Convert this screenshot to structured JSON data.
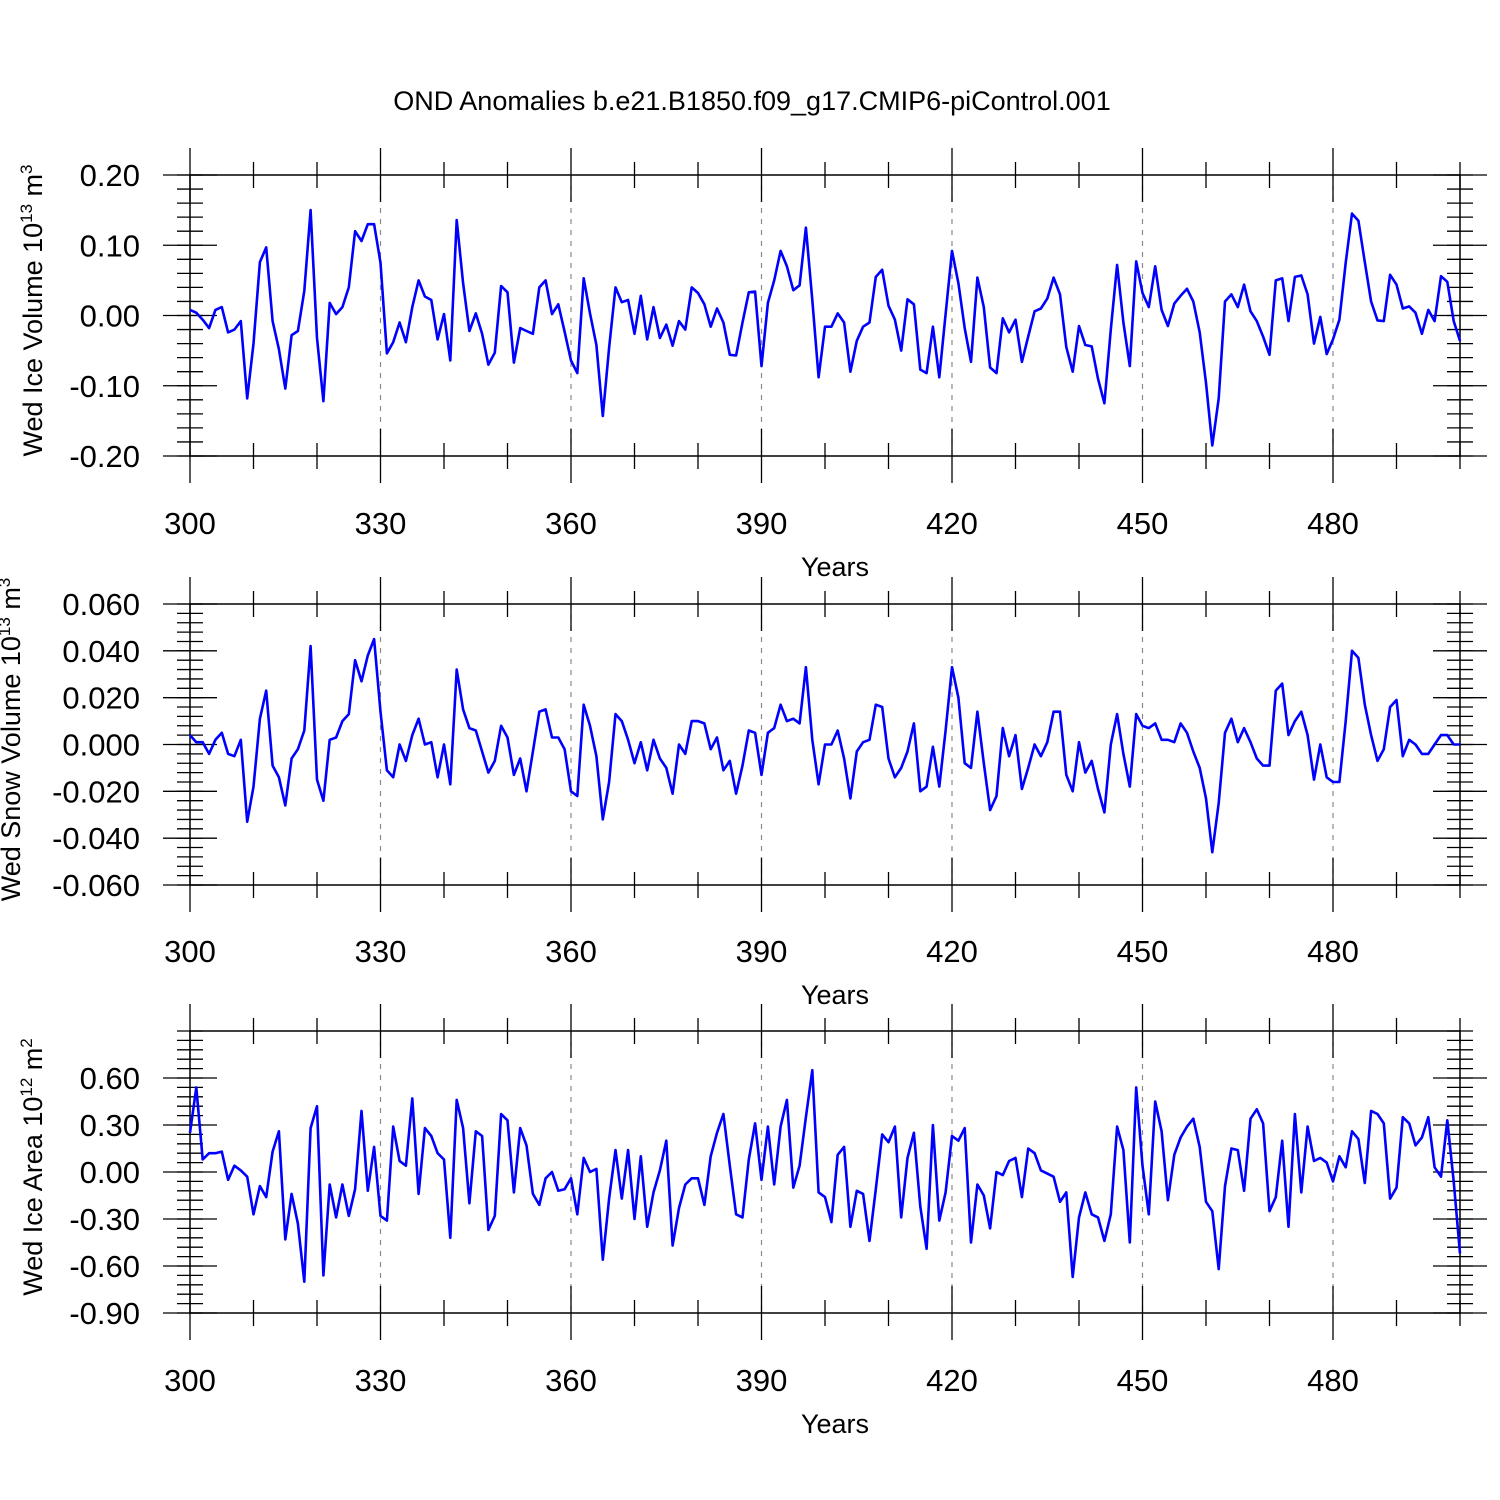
{
  "chart_data": {
    "title": "OND Anomalies b.e21.B1850.f09_g17.CMIP6-piControl.001",
    "line_color": "#0000FF",
    "panels": [
      {
        "type": "line",
        "ylabel_text": "Wed Ice Volume 10",
        "ylabel_sup": "13",
        "ylabel_unit": "m",
        "ylabel_unit_sup": "3",
        "xlabel": "Years",
        "xlim": [
          300,
          500
        ],
        "ylim": [
          -0.2,
          0.2
        ],
        "x_ticks": [
          "300",
          "330",
          "360",
          "390",
          "420",
          "450",
          "480"
        ],
        "y_ticks": [
          "0.20",
          "0.10",
          "0.00",
          "-0.10",
          "-0.20"
        ],
        "x_start": 300,
        "values": [
          0.008,
          0.004,
          -0.006,
          -0.018,
          0.008,
          0.012,
          -0.024,
          -0.02,
          -0.008,
          -0.118,
          -0.04,
          0.076,
          0.097,
          -0.008,
          -0.048,
          -0.104,
          -0.028,
          -0.022,
          0.035,
          0.15,
          -0.032,
          -0.122,
          0.018,
          0.002,
          0.012,
          0.04,
          0.12,
          0.106,
          0.13,
          0.13,
          0.075,
          -0.054,
          -0.038,
          -0.01,
          -0.038,
          0.012,
          0.05,
          0.027,
          0.022,
          -0.034,
          0.002,
          -0.064,
          0.136,
          0.046,
          -0.022,
          0.003,
          -0.026,
          -0.07,
          -0.053,
          0.042,
          0.033,
          -0.067,
          -0.018,
          -0.022,
          -0.026,
          0.04,
          0.05,
          0.002,
          0.016,
          -0.023,
          -0.064,
          -0.082,
          0.053,
          0.003,
          -0.042,
          -0.143,
          -0.046,
          0.04,
          0.019,
          0.022,
          -0.026,
          0.028,
          -0.034,
          0.012,
          -0.032,
          -0.013,
          -0.043,
          -0.008,
          -0.02,
          0.04,
          0.032,
          0.016,
          -0.016,
          0.01,
          -0.01,
          -0.056,
          -0.057,
          -0.01,
          0.033,
          0.034,
          -0.072,
          0.018,
          0.05,
          0.092,
          0.07,
          0.036,
          0.043,
          0.125,
          0.022,
          -0.088,
          -0.016,
          -0.016,
          0.003,
          -0.01,
          -0.08,
          -0.036,
          -0.016,
          -0.01,
          0.055,
          0.065,
          0.014,
          -0.006,
          -0.05,
          0.023,
          0.016,
          -0.077,
          -0.082,
          -0.016,
          -0.088,
          0.002,
          0.092,
          0.046,
          -0.018,
          -0.066,
          0.054,
          0.012,
          -0.074,
          -0.082,
          -0.004,
          -0.024,
          -0.006,
          -0.066,
          -0.03,
          0.006,
          0.01,
          0.024,
          0.054,
          0.03,
          -0.045,
          -0.08,
          -0.015,
          -0.042,
          -0.044,
          -0.09,
          -0.125,
          -0.02,
          0.072,
          -0.01,
          -0.072,
          0.077,
          0.032,
          0.012,
          0.07,
          0.008,
          -0.015,
          0.017,
          0.028,
          0.038,
          0.02,
          -0.024,
          -0.096,
          -0.185,
          -0.118,
          0.02,
          0.03,
          0.012,
          0.044,
          0.006,
          -0.008,
          -0.03,
          -0.056,
          0.05,
          0.053,
          -0.008,
          0.055,
          0.057,
          0.03,
          -0.04,
          -0.002,
          -0.055,
          -0.034,
          -0.006,
          0.075,
          0.145,
          0.135,
          0.076,
          0.02,
          -0.007,
          -0.008,
          0.058,
          0.044,
          0.01,
          0.013,
          0.004,
          -0.026,
          0.008,
          -0.008,
          0.056,
          0.048,
          -0.008,
          -0.036
        ]
      },
      {
        "type": "line",
        "ylabel_text": "Wed Snow Volume 10",
        "ylabel_sup": "13",
        "ylabel_unit": "m",
        "ylabel_unit_sup": "3",
        "xlabel": "Years",
        "xlim": [
          300,
          500
        ],
        "ylim": [
          -0.06,
          0.06
        ],
        "x_ticks": [
          "300",
          "330",
          "360",
          "390",
          "420",
          "450",
          "480"
        ],
        "y_ticks": [
          "0.060",
          "0.040",
          "0.020",
          "0.000",
          "-0.020",
          "-0.040",
          "-0.060"
        ],
        "x_start": 300,
        "values": [
          0.004,
          0.001,
          0.001,
          -0.004,
          0.002,
          0.005,
          -0.004,
          -0.005,
          0.002,
          -0.033,
          -0.018,
          0.011,
          0.023,
          -0.009,
          -0.014,
          -0.026,
          -0.006,
          -0.002,
          0.006,
          0.042,
          -0.015,
          -0.024,
          0.002,
          0.003,
          0.01,
          0.013,
          0.036,
          0.027,
          0.038,
          0.045,
          0.014,
          -0.011,
          -0.014,
          0.0,
          -0.007,
          0.004,
          0.011,
          0.0,
          0.001,
          -0.014,
          0.0,
          -0.017,
          0.032,
          0.015,
          0.007,
          0.006,
          -0.003,
          -0.012,
          -0.007,
          0.008,
          0.003,
          -0.013,
          -0.006,
          -0.02,
          -0.003,
          0.014,
          0.015,
          0.003,
          0.003,
          -0.002,
          -0.02,
          -0.022,
          0.017,
          0.008,
          -0.005,
          -0.032,
          -0.016,
          0.013,
          0.01,
          0.002,
          -0.008,
          0.001,
          -0.011,
          0.002,
          -0.006,
          -0.01,
          -0.021,
          0.0,
          -0.004,
          0.01,
          0.01,
          0.009,
          -0.002,
          0.003,
          -0.011,
          -0.007,
          -0.021,
          -0.009,
          0.006,
          0.005,
          -0.013,
          0.005,
          0.007,
          0.017,
          0.01,
          0.011,
          0.009,
          0.033,
          0.002,
          -0.017,
          0.0,
          0.0,
          0.006,
          -0.006,
          -0.023,
          -0.003,
          0.001,
          0.002,
          0.017,
          0.016,
          -0.006,
          -0.014,
          -0.01,
          -0.003,
          0.009,
          -0.02,
          -0.018,
          -0.001,
          -0.018,
          0.006,
          0.033,
          0.02,
          -0.008,
          -0.01,
          0.014,
          -0.008,
          -0.028,
          -0.022,
          0.007,
          -0.005,
          0.004,
          -0.019,
          -0.01,
          0.0,
          -0.005,
          0.001,
          0.014,
          0.014,
          -0.013,
          -0.02,
          0.001,
          -0.012,
          -0.007,
          -0.019,
          -0.029,
          0.0,
          0.013,
          -0.004,
          -0.018,
          0.013,
          0.008,
          0.007,
          0.009,
          0.002,
          0.002,
          0.001,
          0.009,
          0.005,
          -0.003,
          -0.01,
          -0.023,
          -0.046,
          -0.025,
          0.005,
          0.011,
          0.001,
          0.007,
          0.001,
          -0.006,
          -0.009,
          -0.009,
          0.023,
          0.026,
          0.004,
          0.01,
          0.014,
          0.004,
          -0.015,
          0.0,
          -0.014,
          -0.016,
          -0.016,
          0.01,
          0.04,
          0.037,
          0.017,
          0.004,
          -0.007,
          -0.002,
          0.016,
          0.019,
          -0.005,
          0.002,
          0.0,
          -0.004,
          -0.004,
          0.0,
          0.004,
          0.004,
          0.0,
          0.0
        ]
      },
      {
        "type": "line",
        "ylabel_text": "Wed Ice Area 10",
        "ylabel_sup": "12",
        "ylabel_unit": "m",
        "ylabel_unit_sup": "2",
        "xlabel": "Years",
        "xlim": [
          300,
          500
        ],
        "ylim": [
          -0.9,
          0.9
        ],
        "x_ticks": [
          "300",
          "330",
          "360",
          "390",
          "420",
          "450",
          "480"
        ],
        "y_ticks": [
          "0.60",
          "0.30",
          "0.00",
          "-0.30",
          "-0.60",
          "-0.90"
        ],
        "x_start": 300,
        "values": [
          0.25,
          0.54,
          0.08,
          0.12,
          0.12,
          0.13,
          -0.05,
          0.04,
          0.01,
          -0.03,
          -0.27,
          -0.09,
          -0.16,
          0.13,
          0.26,
          -0.43,
          -0.14,
          -0.33,
          -0.7,
          0.28,
          0.42,
          -0.66,
          -0.08,
          -0.29,
          -0.08,
          -0.28,
          -0.11,
          0.39,
          -0.12,
          0.16,
          -0.28,
          -0.31,
          0.29,
          0.07,
          0.04,
          0.47,
          -0.14,
          0.28,
          0.23,
          0.12,
          0.08,
          -0.42,
          0.46,
          0.28,
          -0.2,
          0.26,
          0.23,
          -0.37,
          -0.28,
          0.37,
          0.33,
          -0.13,
          0.28,
          0.17,
          -0.14,
          -0.21,
          -0.04,
          0.0,
          -0.12,
          -0.11,
          -0.04,
          -0.27,
          0.09,
          0.0,
          0.02,
          -0.56,
          -0.17,
          0.14,
          -0.17,
          0.14,
          -0.3,
          0.1,
          -0.35,
          -0.13,
          0.01,
          0.2,
          -0.47,
          -0.23,
          -0.08,
          -0.04,
          -0.04,
          -0.21,
          0.1,
          0.25,
          0.37,
          0.04,
          -0.27,
          -0.29,
          0.08,
          0.31,
          -0.05,
          0.29,
          -0.08,
          0.29,
          0.46,
          -0.1,
          0.04,
          0.35,
          0.65,
          -0.13,
          -0.16,
          -0.32,
          0.11,
          0.16,
          -0.35,
          -0.12,
          -0.14,
          -0.44,
          -0.11,
          0.24,
          0.19,
          0.29,
          -0.29,
          0.09,
          0.25,
          -0.22,
          -0.49,
          0.3,
          -0.31,
          -0.13,
          0.23,
          0.2,
          0.28,
          -0.45,
          -0.08,
          -0.15,
          -0.36,
          0.0,
          -0.02,
          0.07,
          0.09,
          -0.16,
          0.15,
          0.12,
          0.01,
          -0.01,
          -0.03,
          -0.19,
          -0.13,
          -0.67,
          -0.29,
          -0.13,
          -0.27,
          -0.29,
          -0.44,
          -0.27,
          0.29,
          0.14,
          -0.45,
          0.54,
          0.04,
          -0.27,
          0.45,
          0.26,
          -0.18,
          0.11,
          0.22,
          0.29,
          0.34,
          0.16,
          -0.19,
          -0.25,
          -0.62,
          -0.09,
          0.15,
          0.14,
          -0.12,
          0.34,
          0.4,
          0.31,
          -0.25,
          -0.16,
          0.2,
          -0.35,
          0.37,
          -0.13,
          0.29,
          0.07,
          0.09,
          0.06,
          -0.06,
          0.1,
          0.03,
          0.26,
          0.21,
          -0.07,
          0.39,
          0.37,
          0.31,
          -0.17,
          -0.1,
          0.35,
          0.31,
          0.17,
          0.22,
          0.35,
          0.03,
          -0.03,
          0.33,
          -0.06,
          -0.52
        ]
      }
    ]
  }
}
